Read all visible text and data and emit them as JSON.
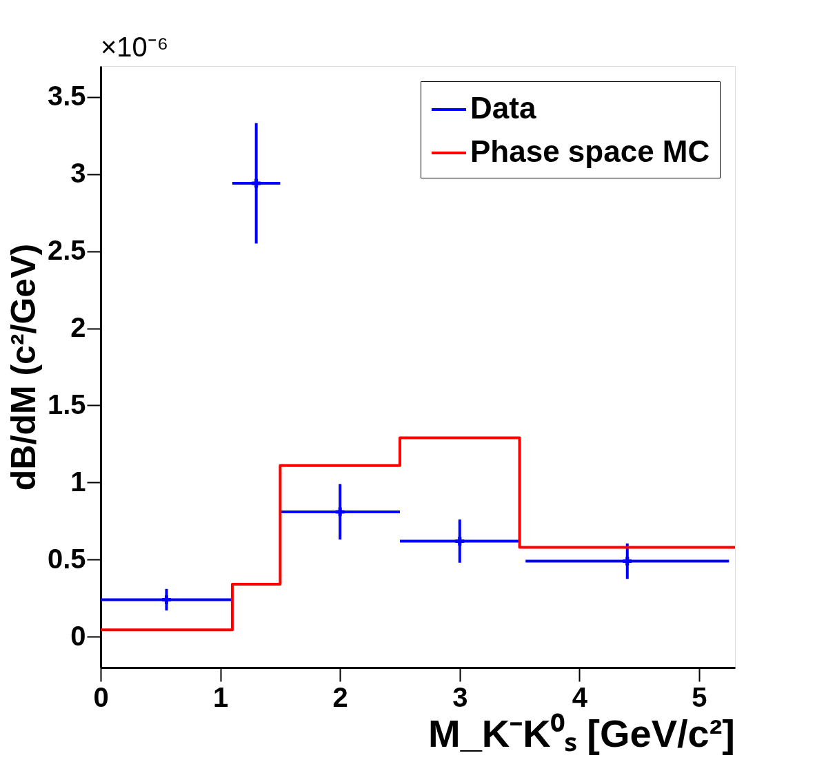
{
  "chart_data": {
    "type": "scatter",
    "xlabel": "M_K⁻K⁰ₛ [GeV/c²]",
    "ylabel": "dB/dM (c²/GeV)",
    "annotations": [
      "×10⁻⁶"
    ],
    "xlim": [
      0,
      5.3
    ],
    "xticks": [
      0,
      1,
      2,
      3,
      4,
      5
    ],
    "ylim": [
      -0.2,
      3.7
    ],
    "yticks": [
      0,
      0.5,
      1,
      1.5,
      2,
      2.5,
      3,
      3.5
    ],
    "grid": false,
    "legend": "top right",
    "series": [
      {
        "name": "Data",
        "color": "#0000ff",
        "marker": "cross",
        "x": [
          0.55,
          1.3,
          2.0,
          3.0,
          4.4
        ],
        "values": [
          0.24,
          2.94,
          0.81,
          0.62,
          0.49
        ],
        "errors": [
          0.07,
          0.39,
          0.18,
          0.14,
          0.115
        ],
        "xerrors": [
          [
            0,
            1.1
          ],
          [
            1.1,
            1.5
          ],
          [
            1.5,
            2.5
          ],
          [
            2.5,
            3.5
          ],
          [
            3.55,
            5.25
          ]
        ]
      },
      {
        "name": "Phase space MC",
        "type": "step",
        "color": "#ff0000",
        "x": [
          0,
          1.1,
          1.5,
          2.5,
          3.5,
          5.3
        ],
        "values": [
          0.045,
          0.34,
          1.11,
          1.29,
          0.58,
          0.58
        ]
      }
    ]
  }
}
